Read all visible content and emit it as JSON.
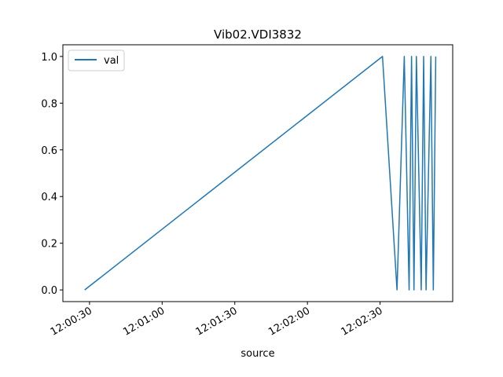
{
  "chart_data": {
    "type": "line",
    "title": "Vib02.VDI3832",
    "xlabel": "source",
    "ylabel": "",
    "xlim": [
      "12:00:19",
      "12:03:00"
    ],
    "ylim": [
      -0.05,
      1.05
    ],
    "grid": false,
    "legend": "top-left",
    "x_ticks": [
      "12:00:30",
      "12:01:00",
      "12:01:30",
      "12:02:00",
      "12:02:30"
    ],
    "y_ticks": [
      "0.0",
      "0.2",
      "0.4",
      "0.6",
      "0.8",
      "1.0"
    ],
    "series": [
      {
        "name": "val",
        "color": "#1f77b4",
        "x": [
          "12:00:28",
          "12:02:31",
          "12:02:37",
          "12:02:40",
          "12:02:42",
          "12:02:43",
          "12:02:44",
          "12:02:45",
          "12:02:47",
          "12:02:48",
          "12:02:49",
          "12:02:51",
          "12:02:52",
          "12:02:53"
        ],
        "y": [
          0,
          1,
          0,
          1,
          0,
          1,
          0,
          1,
          0,
          1,
          0,
          1,
          0,
          1
        ]
      }
    ]
  }
}
